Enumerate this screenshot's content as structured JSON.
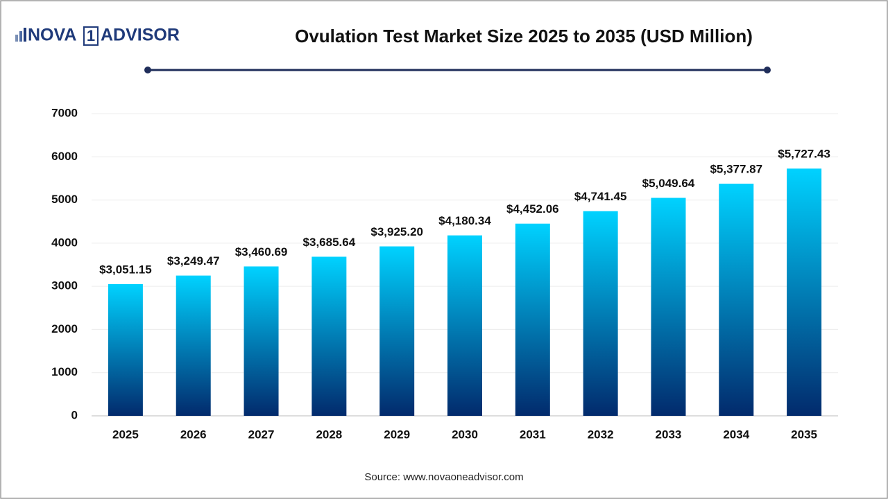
{
  "logo": {
    "left": "NOVA",
    "mark": "1",
    "right": "ADVISOR"
  },
  "chart_data": {
    "type": "bar",
    "title": "Ovulation Test Market Size 2025 to 2035 (USD Million)",
    "source": "Source: www.novaoneadvisor.com",
    "categories": [
      "2025",
      "2026",
      "2027",
      "2028",
      "2029",
      "2030",
      "2031",
      "2032",
      "2033",
      "2034",
      "2035"
    ],
    "values": [
      3051.15,
      3249.47,
      3460.69,
      3685.64,
      3925.2,
      4180.34,
      4452.06,
      4741.45,
      5049.64,
      5377.87,
      5727.43
    ],
    "value_labels": [
      "$3,051.15",
      "$3,249.47",
      "$3,460.69",
      "$3,685.64",
      "$3,925.20",
      "$4,180.34",
      "$4,452.06",
      "$4,741.45",
      "$5,049.64",
      "$5,377.87",
      "$5,727.43"
    ],
    "colors": [
      "#00d2ff",
      "#022a6c"
    ],
    "ylim": [
      0,
      7000
    ],
    "yticks": [
      0,
      1000,
      2000,
      3000,
      4000,
      5000,
      6000,
      7000
    ],
    "grid": true
  }
}
